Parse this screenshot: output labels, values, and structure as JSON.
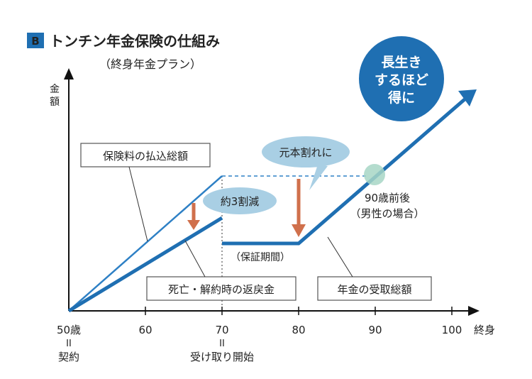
{
  "header": {
    "badge": "B",
    "title": "トンチン年金保険の仕組み",
    "subtitle": "（終身年金プラン）"
  },
  "axes": {
    "y_label_1": "金",
    "y_label_2": "額",
    "x_label": "終身",
    "ticks": [
      "50歳",
      "60",
      "70",
      "80",
      "90",
      "100"
    ],
    "under_50_sep": "II",
    "under_50": "契約",
    "under_70_sep": "II",
    "under_70": "受け取り開始"
  },
  "annotations": {
    "premium_total": "保険料の払込総額",
    "about_30_percent_cut": "約3割減",
    "principal_loss": "元本割れに",
    "guarantee_period": "（保証期間）",
    "age_90_approx": "90歳前後",
    "male_case": "（男性の場合）",
    "refund_on_death": "死亡・解約時の返戻金",
    "total_pension_received": "年金の受取総額",
    "longer_life_1": "長生き",
    "longer_life_2": "するほど",
    "longer_life_3": "得に"
  },
  "colors": {
    "badge": "#1f6fb2",
    "dark_blue": "#1f6fb2",
    "thin_blue": "#2e80c5",
    "bubble": "#a9cfe4",
    "big_circle": "#1f6fb2",
    "arrow_red": "#d0704c",
    "green_dot": "#a7d6c5"
  },
  "chart_data": {
    "type": "line",
    "x_ticks": [
      50,
      60,
      70,
      80,
      90,
      100
    ],
    "series": [
      {
        "name": "保険料の払込総額",
        "x": [
          50,
          70
        ],
        "y": [
          0,
          1.0
        ]
      },
      {
        "name": "死亡・解約時の返戻金",
        "x": [
          50,
          70
        ],
        "y": [
          0,
          0.7
        ]
      },
      {
        "name": "年金の受取総額",
        "x": [
          70,
          80,
          100
        ],
        "y": [
          0.5,
          0.5,
          1.6
        ]
      }
    ]
  }
}
